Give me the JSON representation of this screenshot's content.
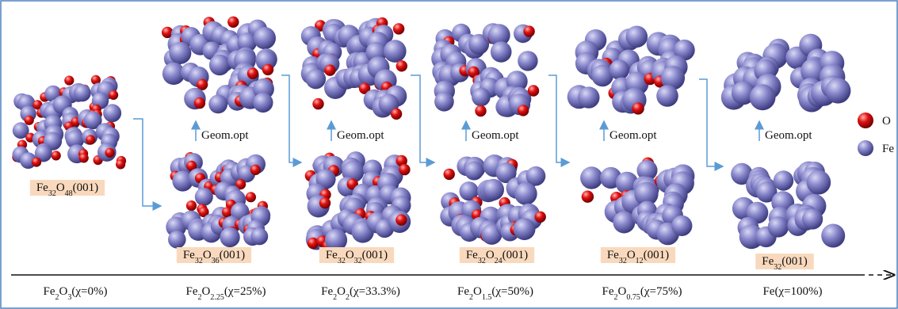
{
  "structures": [
    {
      "label": [
        "Fe",
        "32",
        "O",
        "48",
        "(001)"
      ]
    },
    {
      "label": [
        "Fe",
        "32",
        "O",
        "36",
        "(001)"
      ],
      "step": "Geom.opt"
    },
    {
      "label": [
        "Fe",
        "32",
        "O",
        "32",
        "(001)"
      ],
      "step": "Geom.opt"
    },
    {
      "label": [
        "Fe",
        "32",
        "O",
        "24",
        "(001)"
      ],
      "step": "Geom.opt"
    },
    {
      "label": [
        "Fe",
        "32",
        "O",
        "12",
        "(001)"
      ],
      "step": "Geom.opt"
    },
    {
      "label": [
        "Fe",
        "32",
        "(001)"
      ],
      "step": "Geom.opt"
    }
  ],
  "axis_labels": [
    [
      "Fe",
      "2",
      "O",
      "3",
      "(χ=0%)"
    ],
    [
      "Fe",
      "2",
      "O",
      "2.25",
      "(χ=25%)"
    ],
    [
      "Fe",
      "2",
      "O",
      "2",
      "(χ=33.3%)"
    ],
    [
      "Fe",
      "2",
      "O",
      "1.5",
      "(χ=50%)"
    ],
    [
      "Fe",
      "2",
      "O",
      "0.75",
      "(χ=75%)"
    ],
    [
      "Fe(χ=100%)"
    ]
  ],
  "legend": [
    "O",
    "Fe"
  ]
}
